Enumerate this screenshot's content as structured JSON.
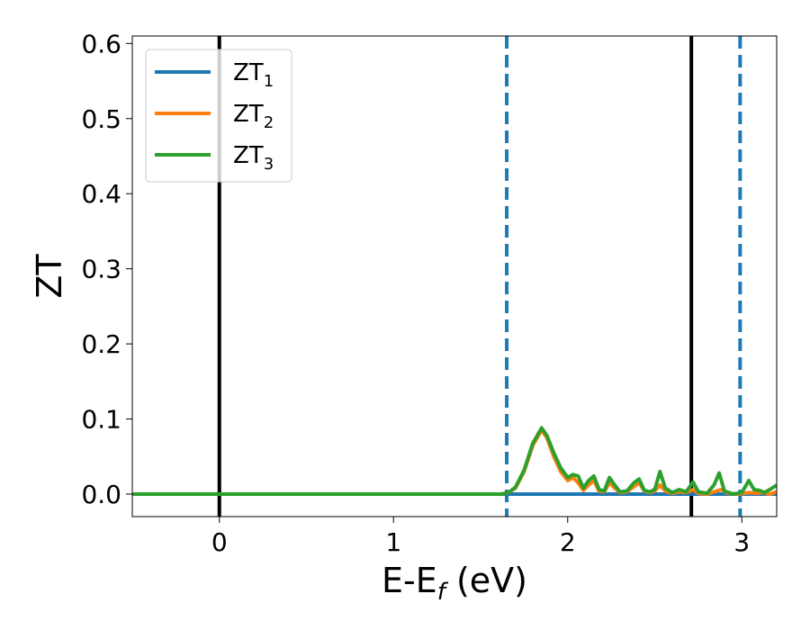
{
  "chart_data": {
    "type": "line",
    "xlabel": {
      "main": "E-E",
      "sub": "f",
      "unit": " (eV)"
    },
    "ylabel": "ZT",
    "xlim": [
      -0.5,
      3.2
    ],
    "ylim": [
      -0.03,
      0.61
    ],
    "xticks": [
      0,
      1,
      2,
      3
    ],
    "yticks": [
      0.0,
      0.1,
      0.2,
      0.3,
      0.4,
      0.5,
      0.6
    ],
    "ytick_labels": [
      "0.0",
      "0.1",
      "0.2",
      "0.3",
      "0.4",
      "0.5",
      "0.6"
    ],
    "legend_position": "top-left",
    "grid": false,
    "vlines": [
      {
        "x": 0.0,
        "style": "solid",
        "color": "#000000"
      },
      {
        "x": 2.71,
        "style": "solid",
        "color": "#000000"
      },
      {
        "x": 1.65,
        "style": "dashed",
        "color": "#1f77b4"
      },
      {
        "x": 2.99,
        "style": "dashed",
        "color": "#1f77b4"
      }
    ],
    "series": [
      {
        "name": "ZT",
        "sub": "1",
        "color": "#1f77b4",
        "points": [
          [
            -0.5,
            0.0
          ],
          [
            3.2,
            0.0
          ]
        ]
      },
      {
        "name": "ZT",
        "sub": "2",
        "color": "#ff7f0e",
        "points": [
          [
            -0.5,
            0.0
          ],
          [
            1.62,
            0.0
          ],
          [
            1.66,
            0.002
          ],
          [
            1.7,
            0.008
          ],
          [
            1.75,
            0.03
          ],
          [
            1.8,
            0.065
          ],
          [
            1.85,
            0.085
          ],
          [
            1.88,
            0.075
          ],
          [
            1.92,
            0.05
          ],
          [
            1.96,
            0.03
          ],
          [
            2.0,
            0.018
          ],
          [
            2.03,
            0.022
          ],
          [
            2.06,
            0.015
          ],
          [
            2.09,
            0.005
          ],
          [
            2.12,
            0.012
          ],
          [
            2.15,
            0.018
          ],
          [
            2.18,
            0.004
          ],
          [
            2.21,
            0.003
          ],
          [
            2.24,
            0.015
          ],
          [
            2.27,
            0.008
          ],
          [
            2.3,
            0.002
          ],
          [
            2.34,
            0.003
          ],
          [
            2.38,
            0.01
          ],
          [
            2.41,
            0.015
          ],
          [
            2.44,
            0.004
          ],
          [
            2.47,
            0.002
          ],
          [
            2.5,
            0.004
          ],
          [
            2.53,
            0.012
          ],
          [
            2.56,
            0.004
          ],
          [
            2.6,
            0.001
          ],
          [
            2.64,
            0.003
          ],
          [
            2.68,
            0.002
          ],
          [
            2.72,
            0.006
          ],
          [
            2.75,
            0.001
          ],
          [
            2.8,
            0.0
          ],
          [
            2.84,
            0.003
          ],
          [
            2.88,
            0.006
          ],
          [
            2.92,
            0.001
          ],
          [
            2.98,
            0.0
          ],
          [
            3.04,
            0.002
          ],
          [
            3.08,
            0.001
          ],
          [
            3.12,
            0.002
          ],
          [
            3.16,
            0.0
          ],
          [
            3.2,
            0.003
          ]
        ]
      },
      {
        "name": "ZT",
        "sub": "3",
        "color": "#2ca02c",
        "points": [
          [
            -0.5,
            0.0
          ],
          [
            1.62,
            0.0
          ],
          [
            1.66,
            0.002
          ],
          [
            1.7,
            0.009
          ],
          [
            1.75,
            0.032
          ],
          [
            1.8,
            0.068
          ],
          [
            1.85,
            0.088
          ],
          [
            1.88,
            0.078
          ],
          [
            1.92,
            0.055
          ],
          [
            1.96,
            0.035
          ],
          [
            2.0,
            0.022
          ],
          [
            2.03,
            0.026
          ],
          [
            2.06,
            0.024
          ],
          [
            2.09,
            0.008
          ],
          [
            2.12,
            0.018
          ],
          [
            2.15,
            0.024
          ],
          [
            2.18,
            0.006
          ],
          [
            2.21,
            0.004
          ],
          [
            2.24,
            0.022
          ],
          [
            2.27,
            0.012
          ],
          [
            2.3,
            0.003
          ],
          [
            2.34,
            0.004
          ],
          [
            2.38,
            0.015
          ],
          [
            2.41,
            0.02
          ],
          [
            2.44,
            0.005
          ],
          [
            2.47,
            0.003
          ],
          [
            2.5,
            0.006
          ],
          [
            2.53,
            0.03
          ],
          [
            2.56,
            0.008
          ],
          [
            2.6,
            0.002
          ],
          [
            2.64,
            0.006
          ],
          [
            2.68,
            0.003
          ],
          [
            2.72,
            0.016
          ],
          [
            2.75,
            0.003
          ],
          [
            2.8,
            0.001
          ],
          [
            2.84,
            0.012
          ],
          [
            2.87,
            0.028
          ],
          [
            2.9,
            0.004
          ],
          [
            2.95,
            0.0
          ],
          [
            3.0,
            0.002
          ],
          [
            3.04,
            0.018
          ],
          [
            3.07,
            0.006
          ],
          [
            3.1,
            0.005
          ],
          [
            3.13,
            0.002
          ],
          [
            3.16,
            0.006
          ],
          [
            3.2,
            0.012
          ]
        ]
      }
    ]
  }
}
